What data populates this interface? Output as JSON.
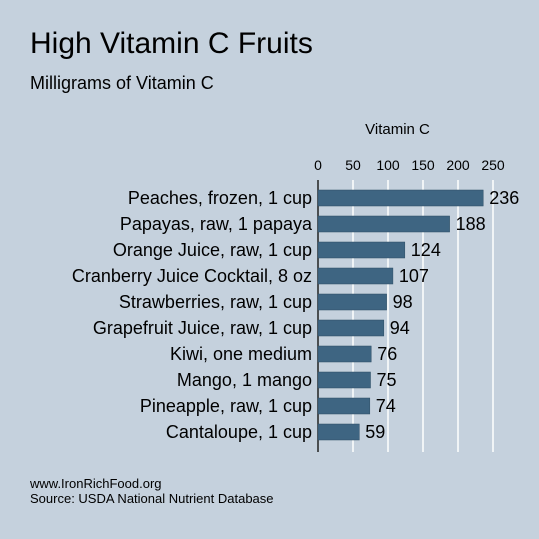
{
  "chart_data": {
    "type": "bar",
    "orientation": "horizontal",
    "title": "High Vitamin C Fruits",
    "subtitle": "Milligrams of Vitamin C",
    "axis_title": "Vitamin C",
    "axis_position": "top",
    "xlim": [
      0,
      250
    ],
    "ticks": [
      0,
      50,
      100,
      150,
      200,
      250
    ],
    "grid": true,
    "bar_color": "#3e6582",
    "categories": [
      "Peaches, frozen, 1 cup",
      "Papayas, raw, 1 papaya",
      "Orange Juice, raw, 1 cup",
      "Cranberry Juice Cocktail, 8 oz",
      "Strawberries, raw, 1 cup",
      "Grapefruit Juice, raw, 1 cup",
      "Kiwi, one medium",
      "Mango, 1 mango",
      "Pineapple, raw, 1 cup",
      "Cantaloupe, 1 cup"
    ],
    "values": [
      236,
      188,
      124,
      107,
      98,
      94,
      76,
      75,
      74,
      59
    ]
  },
  "footer": {
    "website": "www.IronRichFood.org",
    "source": "Source: USDA National Nutrient Database"
  }
}
